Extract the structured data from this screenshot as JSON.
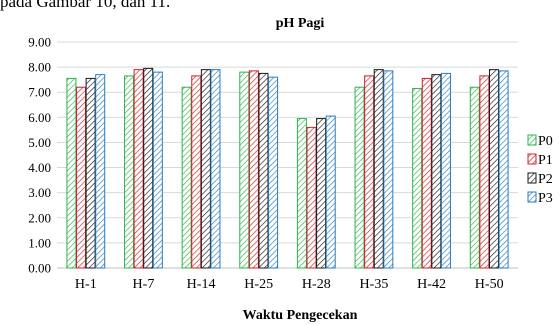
{
  "page": {
    "cropped_text": "pada Gambar 10, dan 11."
  },
  "chart_data": {
    "type": "bar",
    "title": "pH Pagi",
    "xlabel": "Waktu Pengecekan",
    "ylabel": "",
    "categories": [
      "H-1",
      "H-7",
      "H-14",
      "H-25",
      "H-28",
      "H-35",
      "H-42",
      "H-50"
    ],
    "ylim": [
      0,
      9
    ],
    "yticks": [
      "0.00",
      "1.00",
      "2.00",
      "3.00",
      "4.00",
      "5.00",
      "6.00",
      "7.00",
      "8.00",
      "9.00"
    ],
    "grid": true,
    "legend_position": "right",
    "series": [
      {
        "name": "P0",
        "color": "#2db34a",
        "values": [
          7.55,
          7.65,
          7.2,
          7.8,
          5.95,
          7.2,
          7.15,
          7.2
        ]
      },
      {
        "name": "P1",
        "color": "#d0202a",
        "values": [
          7.2,
          7.9,
          7.65,
          7.85,
          5.6,
          7.65,
          7.55,
          7.65
        ]
      },
      {
        "name": "P2",
        "color": "#1a1a1a",
        "values": [
          7.55,
          7.95,
          7.9,
          7.75,
          5.95,
          7.9,
          7.7,
          7.9
        ]
      },
      {
        "name": "P3",
        "color": "#2a7bbf",
        "values": [
          7.7,
          7.8,
          7.9,
          7.6,
          6.05,
          7.85,
          7.75,
          7.85
        ]
      }
    ]
  }
}
